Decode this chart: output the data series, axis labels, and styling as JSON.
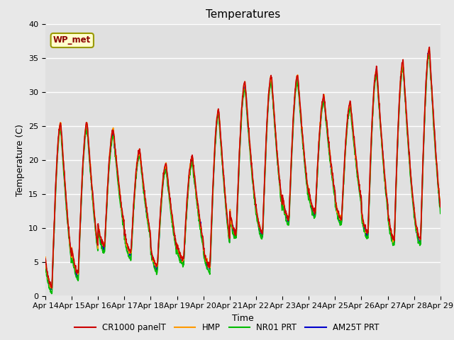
{
  "title": "Temperatures",
  "xlabel": "Time",
  "ylabel": "Temperature (C)",
  "x_tick_labels": [
    "Apr 14",
    "Apr 15",
    "Apr 16",
    "Apr 17",
    "Apr 18",
    "Apr 19",
    "Apr 20",
    "Apr 21",
    "Apr 22",
    "Apr 23",
    "Apr 24",
    "Apr 25",
    "Apr 26",
    "Apr 27",
    "Apr 28",
    "Apr 29"
  ],
  "ylim": [
    0,
    40
  ],
  "fig_bg_color": "#e8e8e8",
  "plot_bg_color": "#e0e0e0",
  "legend_entries": [
    "CR1000 panelT",
    "HMP",
    "NR01 PRT",
    "AM25T PRT"
  ],
  "legend_colors": [
    "#cc0000",
    "#ff9900",
    "#00bb00",
    "#0000cc"
  ],
  "watermark_text": "WP_met",
  "line_width": 1.2,
  "day_mins": [
    1,
    3,
    7,
    6,
    4,
    5,
    4,
    9,
    9,
    11,
    12,
    11,
    9,
    8,
    8,
    16
  ],
  "day_maxs": [
    25,
    25,
    24,
    21,
    19,
    20,
    27,
    31,
    32,
    32,
    29,
    28,
    33,
    34,
    36,
    16
  ],
  "n_days": 15,
  "n_points_per_day": 96
}
